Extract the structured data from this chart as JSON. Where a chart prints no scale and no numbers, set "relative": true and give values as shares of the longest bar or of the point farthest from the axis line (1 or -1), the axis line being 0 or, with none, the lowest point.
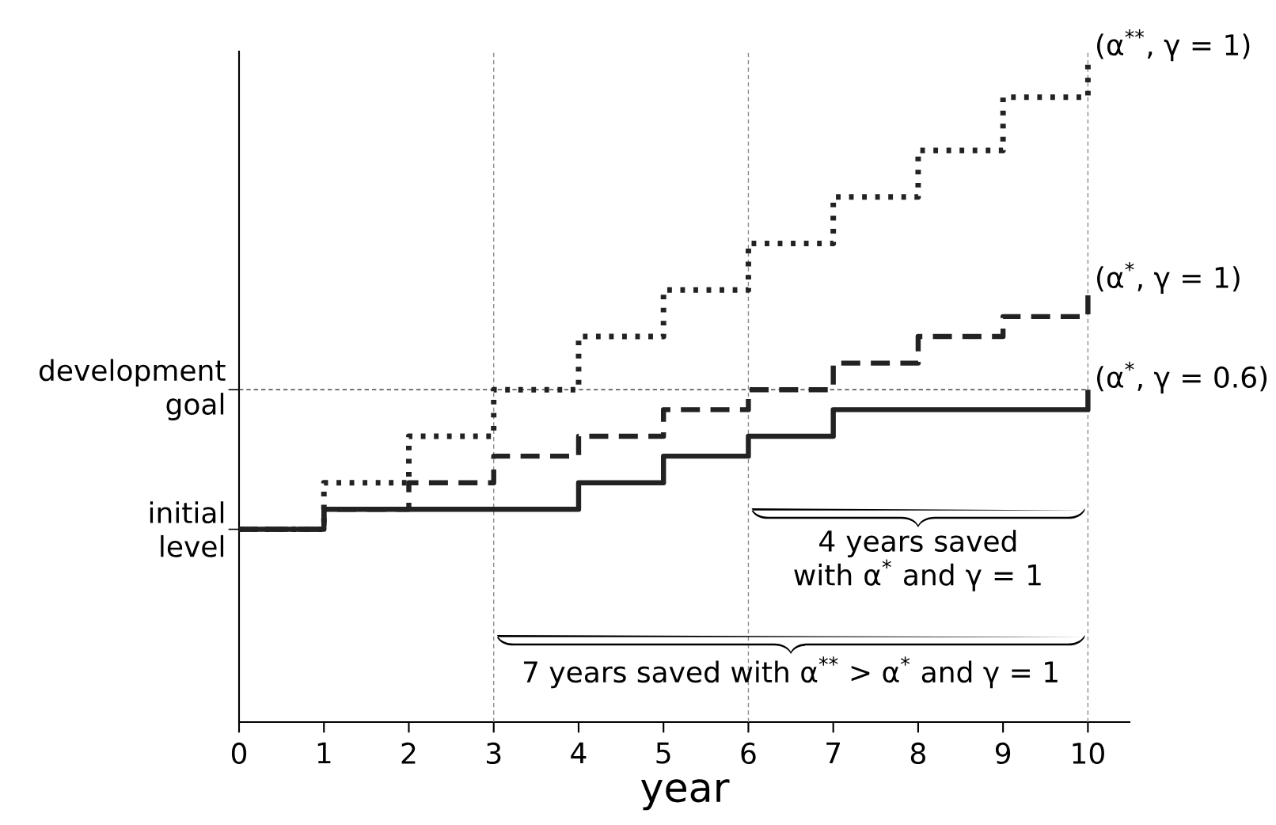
{
  "chart_data": {
    "type": "step",
    "relative": true,
    "xlabel": "year",
    "x": [
      0,
      1,
      2,
      3,
      4,
      5,
      6,
      7,
      8,
      9,
      10
    ],
    "xlim": [
      0,
      10.5
    ],
    "xticks": [
      0,
      1,
      2,
      3,
      4,
      5,
      6,
      7,
      8,
      9,
      10
    ],
    "series": [
      {
        "name": "(α$^{**}$, γ = 1)",
        "color": "#222222",
        "line_style": "dotted",
        "values": [
          0.29,
          0.36,
          0.43,
          0.5,
          0.58,
          0.65,
          0.72,
          0.79,
          0.86,
          0.94,
          1.0
        ]
      },
      {
        "name": "(α$^{*}$, γ = 1)",
        "color": "#222222",
        "line_style": "dashed",
        "values": [
          0.29,
          0.32,
          0.36,
          0.4,
          0.43,
          0.47,
          0.5,
          0.54,
          0.58,
          0.61,
          0.65
        ]
      },
      {
        "name": "(α$^{*}$, γ = 0.6)",
        "color": "#222222",
        "line_style": "solid",
        "values": [
          0.29,
          0.32,
          0.32,
          0.32,
          0.36,
          0.4,
          0.43,
          0.47,
          0.47,
          0.47,
          0.5
        ]
      }
    ],
    "ref_lines": [
      {
        "axis": "y",
        "value": 0.5,
        "label": "development goal",
        "line_style": "dashed",
        "color": "#222222"
      },
      {
        "axis": "x",
        "value": 3,
        "line_style": "dashed",
        "color": "#888888"
      },
      {
        "axis": "x",
        "value": 6,
        "line_style": "dashed",
        "color": "#888888"
      },
      {
        "axis": "x",
        "value": 10,
        "line_style": "dashed",
        "color": "#888888"
      }
    ],
    "annotations": [
      {
        "text": "initial level",
        "x": 0,
        "y": 0.29
      },
      "4 years saved with α$^{*}$ and γ = 1",
      "7 years saved with α$^{**}$ > α$^{*}$ and γ = 1"
    ]
  }
}
